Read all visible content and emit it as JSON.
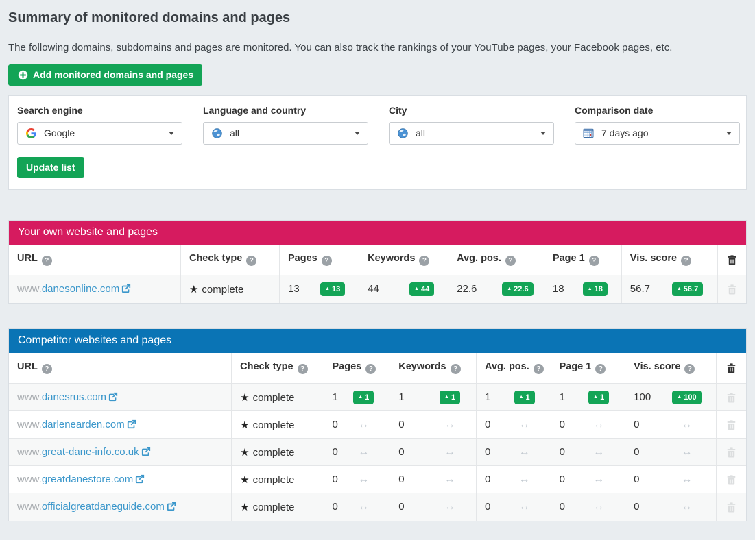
{
  "page": {
    "title": "Summary of monitored domains and pages",
    "subtitle": "The following domains, subdomains and pages are monitored. You can also track the rankings of your YouTube pages, your Facebook pages, etc.",
    "add_button_label": "Add monitored domains and pages"
  },
  "filters": {
    "search_engine": {
      "label": "Search engine",
      "value": "Google"
    },
    "language": {
      "label": "Language and country",
      "value": "all"
    },
    "city": {
      "label": "City",
      "value": "all"
    },
    "comparison_date": {
      "label": "Comparison date",
      "value": "7 days ago"
    },
    "update_button_label": "Update list"
  },
  "icons": {
    "question": "?",
    "delta_up": "▲",
    "no_change": "↔",
    "star": "★"
  },
  "colors": {
    "own_header": "#d61b5f",
    "competitor_header": "#0a74b5",
    "success": "#13a456",
    "link": "#3b97cb"
  },
  "own_table": {
    "title": "Your own website and pages",
    "columns": [
      "URL",
      "Check type",
      "Pages",
      "Keywords",
      "Avg. pos.",
      "Page 1",
      "Vis. score"
    ],
    "rows": [
      {
        "url_prefix": "www.",
        "url_domain": "danesonline.com",
        "check_type": "complete",
        "metrics": [
          {
            "value": "13",
            "delta": "13"
          },
          {
            "value": "44",
            "delta": "44"
          },
          {
            "value": "22.6",
            "delta": "22.6"
          },
          {
            "value": "18",
            "delta": "18"
          },
          {
            "value": "56.7",
            "delta": "56.7"
          }
        ]
      }
    ]
  },
  "competitor_table": {
    "title": "Competitor websites and pages",
    "columns": [
      "URL",
      "Check type",
      "Pages",
      "Keywords",
      "Avg. pos.",
      "Page 1",
      "Vis. score"
    ],
    "rows": [
      {
        "url_prefix": "www.",
        "url_domain": "danesrus.com",
        "check_type": "complete",
        "metrics": [
          {
            "value": "1",
            "delta": "1"
          },
          {
            "value": "1",
            "delta": "1"
          },
          {
            "value": "1",
            "delta": "1"
          },
          {
            "value": "1",
            "delta": "1"
          },
          {
            "value": "100",
            "delta": "100"
          }
        ]
      },
      {
        "url_prefix": "www.",
        "url_domain": "darlenearden.com",
        "check_type": "complete",
        "metrics": [
          {
            "value": "0",
            "delta": null
          },
          {
            "value": "0",
            "delta": null
          },
          {
            "value": "0",
            "delta": null
          },
          {
            "value": "0",
            "delta": null
          },
          {
            "value": "0",
            "delta": null
          }
        ]
      },
      {
        "url_prefix": "www.",
        "url_domain": "great-dane-info.co.uk",
        "check_type": "complete",
        "metrics": [
          {
            "value": "0",
            "delta": null
          },
          {
            "value": "0",
            "delta": null
          },
          {
            "value": "0",
            "delta": null
          },
          {
            "value": "0",
            "delta": null
          },
          {
            "value": "0",
            "delta": null
          }
        ]
      },
      {
        "url_prefix": "www.",
        "url_domain": "greatdanestore.com",
        "check_type": "complete",
        "metrics": [
          {
            "value": "0",
            "delta": null
          },
          {
            "value": "0",
            "delta": null
          },
          {
            "value": "0",
            "delta": null
          },
          {
            "value": "0",
            "delta": null
          },
          {
            "value": "0",
            "delta": null
          }
        ]
      },
      {
        "url_prefix": "www.",
        "url_domain": "officialgreatdaneguide.com",
        "check_type": "complete",
        "metrics": [
          {
            "value": "0",
            "delta": null
          },
          {
            "value": "0",
            "delta": null
          },
          {
            "value": "0",
            "delta": null
          },
          {
            "value": "0",
            "delta": null
          },
          {
            "value": "0",
            "delta": null
          }
        ]
      }
    ]
  }
}
